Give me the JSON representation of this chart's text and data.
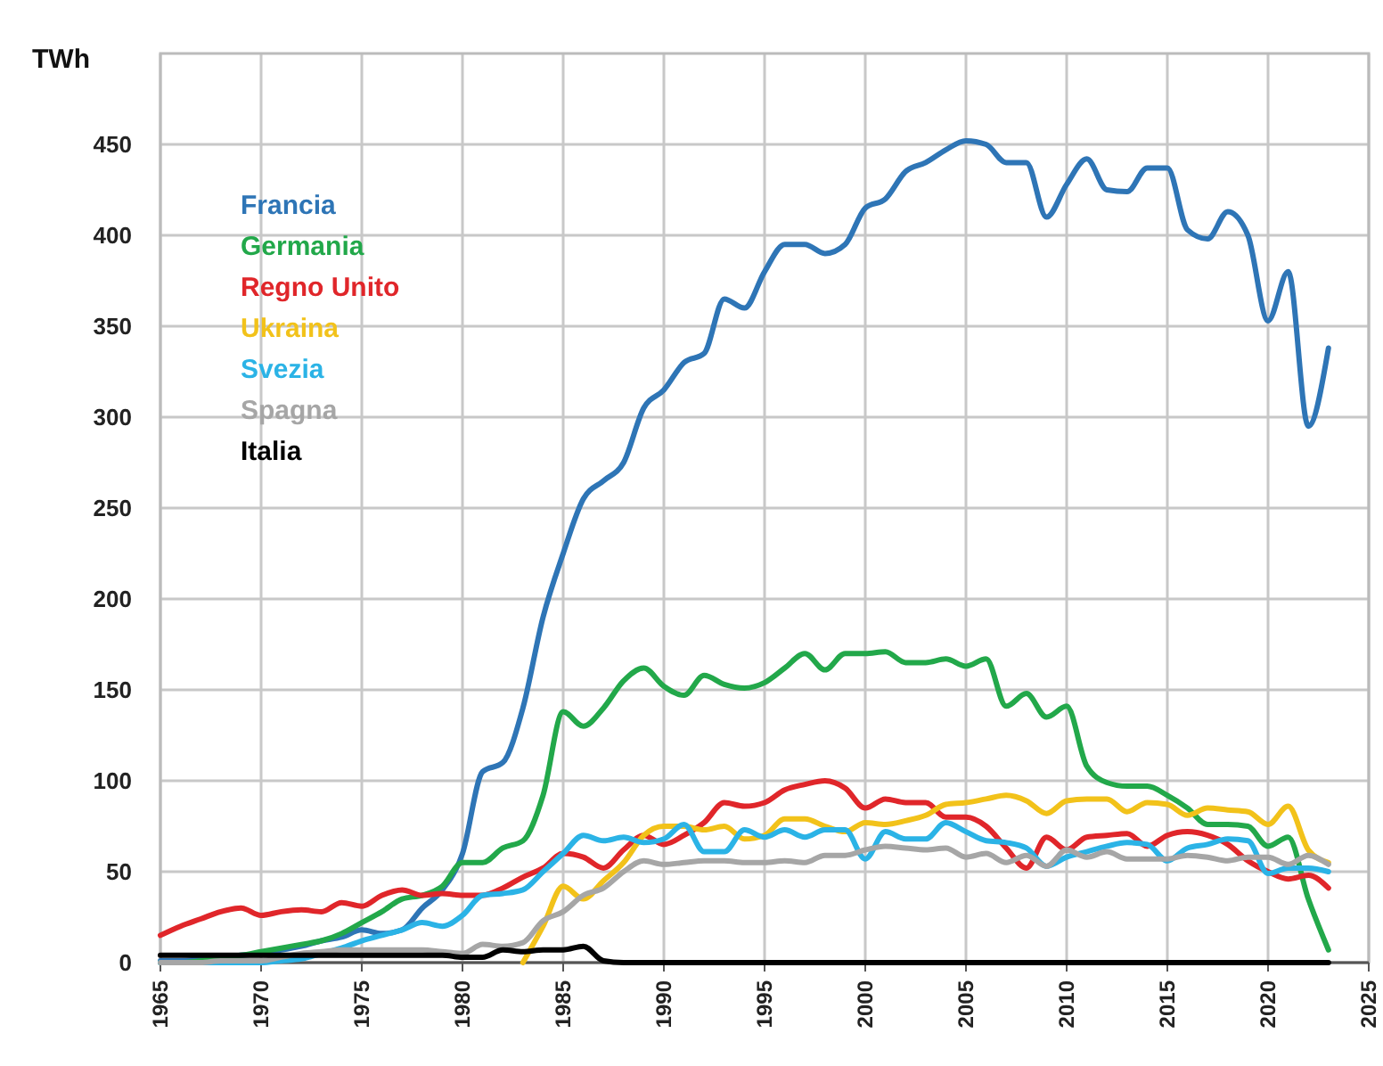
{
  "chart_data": {
    "type": "line",
    "ylabel": "TWh",
    "x": [
      1965,
      1966,
      1967,
      1968,
      1969,
      1970,
      1971,
      1972,
      1973,
      1974,
      1975,
      1976,
      1977,
      1978,
      1979,
      1980,
      1981,
      1982,
      1983,
      1984,
      1985,
      1986,
      1987,
      1988,
      1989,
      1990,
      1991,
      1992,
      1993,
      1994,
      1995,
      1996,
      1997,
      1998,
      1999,
      2000,
      2001,
      2002,
      2003,
      2004,
      2005,
      2006,
      2007,
      2008,
      2009,
      2010,
      2011,
      2012,
      2013,
      2014,
      2015,
      2016,
      2017,
      2018,
      2019,
      2020,
      2021,
      2022,
      2023
    ],
    "series": [
      {
        "name": "Francia",
        "color": "#2e75b6",
        "values": [
          1,
          1,
          2,
          3,
          4,
          5,
          7,
          9,
          12,
          14,
          18,
          16,
          18,
          30,
          40,
          60,
          105,
          110,
          140,
          190,
          225,
          255,
          265,
          275,
          305,
          315,
          330,
          335,
          365,
          360,
          380,
          395,
          395,
          390,
          395,
          415,
          420,
          435,
          440,
          447,
          452,
          450,
          440,
          440,
          410,
          428,
          442,
          425,
          424,
          437,
          437,
          403,
          398,
          413,
          400,
          353,
          380,
          295,
          338
        ]
      },
      {
        "name": "Germania",
        "color": "#22a84a",
        "values": [
          0,
          0,
          1,
          3,
          4,
          6,
          8,
          10,
          12,
          16,
          22,
          28,
          35,
          37,
          42,
          55,
          55,
          63,
          67,
          92,
          138,
          130,
          140,
          155,
          162,
          152,
          147,
          158,
          153,
          151,
          154,
          162,
          170,
          161,
          170,
          170,
          171,
          165,
          165,
          167,
          163,
          167,
          141,
          148,
          135,
          141,
          108,
          99,
          97,
          97,
          92,
          85,
          76,
          76,
          75,
          64,
          69,
          35,
          7
        ]
      },
      {
        "name": "Regno Unito",
        "color": "#e0262a",
        "values": [
          15,
          20,
          24,
          28,
          30,
          26,
          28,
          29,
          28,
          33,
          31,
          37,
          40,
          37,
          38,
          37,
          37,
          41,
          47,
          52,
          60,
          58,
          52,
          62,
          70,
          65,
          70,
          77,
          88,
          86,
          88,
          95,
          98,
          100,
          96,
          85,
          90,
          88,
          88,
          80,
          80,
          75,
          63,
          52,
          69,
          62,
          69,
          70,
          71,
          64,
          70,
          72,
          70,
          65,
          56,
          50,
          46,
          48,
          41
        ]
      },
      {
        "name": "Ukraina",
        "color": "#f2c21a",
        "values": [
          null,
          null,
          null,
          null,
          null,
          null,
          null,
          null,
          null,
          null,
          null,
          null,
          null,
          null,
          null,
          null,
          null,
          null,
          0,
          20,
          42,
          35,
          45,
          55,
          70,
          75,
          75,
          73,
          75,
          68,
          70,
          79,
          79,
          75,
          72,
          77,
          76,
          78,
          81,
          87,
          88,
          90,
          92,
          89,
          82,
          89,
          90,
          90,
          83,
          88,
          87,
          81,
          85,
          84,
          83,
          76,
          86,
          62,
          55
        ]
      },
      {
        "name": "Svezia",
        "color": "#2bb3e6",
        "values": [
          0,
          0,
          0,
          0,
          0,
          0,
          1,
          2,
          5,
          8,
          12,
          15,
          18,
          22,
          20,
          26,
          37,
          38,
          40,
          50,
          60,
          70,
          67,
          69,
          66,
          68,
          76,
          61,
          61,
          73,
          69,
          73,
          69,
          73,
          73,
          57,
          72,
          68,
          68,
          77,
          72,
          67,
          66,
          63,
          53,
          58,
          61,
          64,
          66,
          65,
          56,
          63,
          65,
          68,
          67,
          49,
          52,
          52,
          50
        ]
      },
      {
        "name": "Spagna",
        "color": "#a6a6a6",
        "values": [
          0,
          0,
          0,
          1,
          1,
          1,
          3,
          5,
          6,
          7,
          7,
          7,
          7,
          7,
          6,
          5,
          10,
          9,
          11,
          23,
          28,
          37,
          41,
          50,
          56,
          54,
          55,
          56,
          56,
          55,
          55,
          56,
          55,
          59,
          59,
          62,
          64,
          63,
          62,
          63,
          58,
          60,
          55,
          59,
          53,
          62,
          58,
          61,
          57,
          57,
          57,
          59,
          58,
          56,
          58,
          58,
          54,
          59,
          54
        ]
      },
      {
        "name": "Italia",
        "color": "#000000",
        "values": [
          4,
          4,
          4,
          4,
          4,
          4,
          4,
          4,
          4,
          4,
          4,
          4,
          4,
          4,
          4,
          3,
          3,
          7,
          6,
          7,
          7,
          9,
          1,
          0,
          0,
          0,
          0,
          0,
          0,
          0,
          0,
          0,
          0,
          0,
          0,
          0,
          0,
          0,
          0,
          0,
          0,
          0,
          0,
          0,
          0,
          0,
          0,
          0,
          0,
          0,
          0,
          0,
          0,
          0,
          0,
          0,
          0,
          0,
          0
        ]
      }
    ],
    "xlim": [
      1965,
      2025
    ],
    "xticks": [
      1965,
      1970,
      1975,
      1980,
      1985,
      1990,
      1995,
      2000,
      2005,
      2010,
      2015,
      2020,
      2025
    ],
    "ylim": [
      0,
      500
    ],
    "yticks": [
      0,
      50,
      100,
      150,
      200,
      250,
      300,
      350,
      400,
      450
    ],
    "grid": true,
    "legend": "top left",
    "line_style": "solid",
    "marker": "none"
  }
}
